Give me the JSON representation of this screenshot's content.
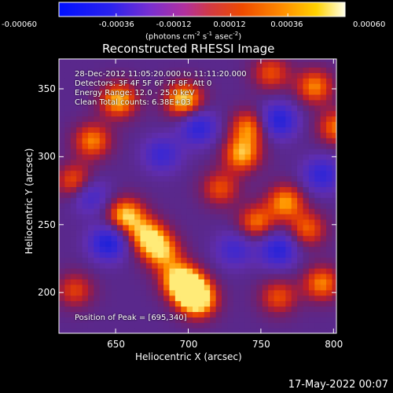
{
  "chart_data": {
    "type": "heatmap",
    "title": "Reconstructed RHESSI Image",
    "xlabel": "Heliocentric X (arcsec)",
    "ylabel": "Heliocentric Y (arcsec)",
    "xlim": [
      611,
      802
    ],
    "ylim": [
      170,
      372
    ],
    "x_ticks": [
      650,
      700,
      750,
      800
    ],
    "y_ticks": [
      200,
      250,
      300,
      350
    ],
    "x_tick_labels": [
      "650",
      "700",
      "750",
      "800"
    ],
    "y_tick_labels": [
      "200",
      "250",
      "300",
      "350"
    ],
    "colorbar": {
      "range": [
        -0.0006,
        0.0006
      ],
      "ticks": [
        -0.0006,
        -0.00036,
        -0.00012,
        0.00012,
        0.00036,
        0.0006
      ],
      "tick_labels": [
        "-0.00060",
        "-0.00036",
        "-0.00012",
        "0.00012",
        "0.00036",
        "0.00060"
      ],
      "unit_main": "(photons cm",
      "unit_exp1": "-2",
      "unit_mid": " s",
      "unit_exp2": "-1",
      "unit_end": " asec",
      "unit_exp3": "-2",
      "unit_close": ")"
    },
    "annotations": {
      "time": "28-Dec-2012 11:05:20.000 to 11:11:20.000",
      "detectors": "Detectors: 3F 4F 5F 6F 7F 8F, Att 0",
      "energy": "Energy Range: 12.0 - 25.0 keV",
      "clean": "Clean    Total counts: 6.38E+03",
      "peak": "Position of Peak = [695,340]"
    },
    "peak_position": [
      695,
      340
    ],
    "bright_features": [
      {
        "x": 655,
        "y": 255,
        "intensity": 0.95
      },
      {
        "x": 670,
        "y": 240,
        "intensity": 0.9
      },
      {
        "x": 692,
        "y": 208,
        "intensity": 0.95
      },
      {
        "x": 680,
        "y": 228,
        "intensity": 0.8
      },
      {
        "x": 700,
        "y": 200,
        "intensity": 0.85
      },
      {
        "x": 705,
        "y": 192,
        "intensity": 0.9
      },
      {
        "x": 695,
        "y": 340,
        "intensity": 1.0
      },
      {
        "x": 650,
        "y": 340,
        "intensity": 0.9
      },
      {
        "x": 632,
        "y": 310,
        "intensity": 0.75
      },
      {
        "x": 620,
        "y": 280,
        "intensity": 0.7
      },
      {
        "x": 735,
        "y": 300,
        "intensity": 0.85
      },
      {
        "x": 740,
        "y": 320,
        "intensity": 0.75
      },
      {
        "x": 785,
        "y": 350,
        "intensity": 0.75
      },
      {
        "x": 800,
        "y": 320,
        "intensity": 0.7
      },
      {
        "x": 755,
        "y": 360,
        "intensity": 0.6
      },
      {
        "x": 745,
        "y": 250,
        "intensity": 0.7
      },
      {
        "x": 765,
        "y": 265,
        "intensity": 0.8
      },
      {
        "x": 780,
        "y": 245,
        "intensity": 0.65
      },
      {
        "x": 790,
        "y": 205,
        "intensity": 0.75
      },
      {
        "x": 760,
        "y": 195,
        "intensity": 0.6
      },
      {
        "x": 620,
        "y": 200,
        "intensity": 0.55
      },
      {
        "x": 720,
        "y": 275,
        "intensity": 0.6
      }
    ],
    "dim_features": [
      {
        "x": 643,
        "y": 235,
        "intensity": -0.9
      },
      {
        "x": 705,
        "y": 320,
        "intensity": -0.75
      },
      {
        "x": 760,
        "y": 325,
        "intensity": -0.85
      },
      {
        "x": 760,
        "y": 230,
        "intensity": -0.8
      },
      {
        "x": 680,
        "y": 300,
        "intensity": -0.6
      },
      {
        "x": 790,
        "y": 285,
        "intensity": -0.7
      },
      {
        "x": 730,
        "y": 230,
        "intensity": -0.55
      },
      {
        "x": 630,
        "y": 270,
        "intensity": -0.6
      }
    ]
  },
  "footer": {
    "timestamp": "17-May-2022 00:07"
  }
}
